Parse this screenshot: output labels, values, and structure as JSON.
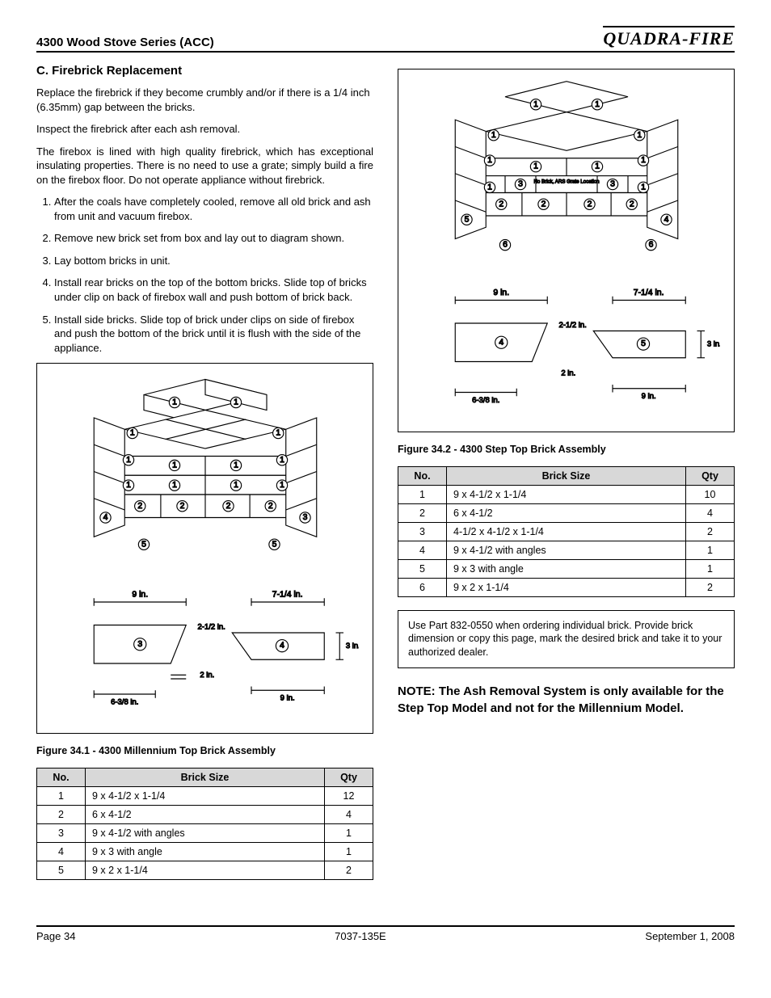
{
  "header": {
    "title": "4300 Wood Stove Series (ACC)",
    "logo": "Quadra-Fire"
  },
  "section": {
    "heading": "C.  Firebrick Replacement",
    "p1": "Replace the firebrick if they become crumbly and/or if there is a 1/4 inch (6.35mm) gap between the bricks.",
    "p2": "Inspect the firebrick after each ash removal.",
    "p3": "The firebox is lined with high quality firebrick, which has exceptional insulating properties.  There is no need to use a grate; simply build a fire on the firebox floor.  Do not operate appliance without firebrick.",
    "steps": [
      "After the coals have completely cooled, remove all old brick and ash from unit and vacuum firebox.",
      "Remove new brick set from box and lay out to diagram shown.",
      "Lay bottom bricks in unit.",
      "Install rear bricks on the top of the bottom bricks.  Slide top of bricks under clip on back of firebox wall and push bottom of brick back.",
      "Install side bricks.  Slide top of brick under clips on side of firebox and push the bottom of the brick until it is flush with the side of the appliance."
    ]
  },
  "fig1": {
    "caption": "Figure 34.1 - 4300 Millennium Top Brick Assembly",
    "top_labels_row1": [
      "1",
      "1"
    ],
    "top_labels_row2": [
      "1",
      "1"
    ],
    "top_labels_row3": [
      "1",
      "1",
      "1",
      "1"
    ],
    "top_labels_row4": [
      "1",
      "1",
      "1",
      "1"
    ],
    "top_labels_row5": [
      "4",
      "2",
      "2",
      "2",
      "2",
      "3"
    ],
    "top_labels_row6": [
      "5",
      "5"
    ],
    "dim_9in": "9 in.",
    "dim_7_14in": "7-1/4 in.",
    "dim_2_12in": "2-1/2 in.",
    "dim_2in": "2 in.",
    "dim_6_38in": "6-3/8 in.",
    "dim_3in": "3 in.",
    "shape3_label": "3",
    "shape4_label": "4"
  },
  "fig2": {
    "caption": "Figure 34.2 - 4300 Step Top Brick Assembly",
    "top_labels_row1": [
      "1",
      "1"
    ],
    "top_labels_row2": [
      "1",
      "1"
    ],
    "top_labels_row3": [
      "1",
      "1",
      "1",
      "1"
    ],
    "top_labels_center": [
      "3",
      "No Brick, ARS Grate Location",
      "3"
    ],
    "top_labels_row4": [
      "1",
      "1"
    ],
    "top_labels_row5": [
      "5",
      "2",
      "2",
      "2",
      "2",
      "4"
    ],
    "top_labels_row6": [
      "6",
      "6"
    ],
    "dim_9in": "9 in.",
    "dim_7_14in": "7-1/4 in.",
    "dim_2_12in": "2-1/2 in.",
    "dim_2in": "2 in.",
    "dim_6_38in": "6-3/8 in.",
    "dim_3in": "3 in.",
    "shape4_label": "4",
    "shape5_label": "5"
  },
  "table1": {
    "headers": [
      "No.",
      "Brick Size",
      "Qty"
    ],
    "rows": [
      [
        "1",
        "9 x 4-1/2  x 1-1/4",
        "12"
      ],
      [
        "2",
        "6 x 4-1/2",
        "4"
      ],
      [
        "3",
        "9 x 4-1/2 with angles",
        "1"
      ],
      [
        "4",
        "9 x 3 with angle",
        "1"
      ],
      [
        "5",
        "9 x 2 x 1-1/4",
        "2"
      ]
    ]
  },
  "table2": {
    "headers": [
      "No.",
      "Brick Size",
      "Qty"
    ],
    "rows": [
      [
        "1",
        "9 x 4-1/2  x 1-1/4",
        "10"
      ],
      [
        "2",
        "6 x 4-1/2",
        "4"
      ],
      [
        "3",
        "4-1/2 x 4-1/2 x 1-1/4",
        "2"
      ],
      [
        "4",
        "9 x 4-1/2 with angles",
        "1"
      ],
      [
        "5",
        "9 x 3 with angle",
        "1"
      ],
      [
        "6",
        "9 x 2 x 1-1/4",
        "2"
      ]
    ]
  },
  "notebox": "Use Part 832-0550 when ordering individual brick.  Provide brick dimension or copy this page, mark the desired brick and take it to your authorized dealer.",
  "bignote": "NOTE:  The Ash Removal System is only available for  the Step Top Model and not for the Millennium Model.",
  "footer": {
    "left": "Page  34",
    "center": "7037-135E",
    "right": "September 1, 2008"
  },
  "style": {
    "stroke": "#000000",
    "fill": "#ffffff",
    "font": "Arial"
  }
}
